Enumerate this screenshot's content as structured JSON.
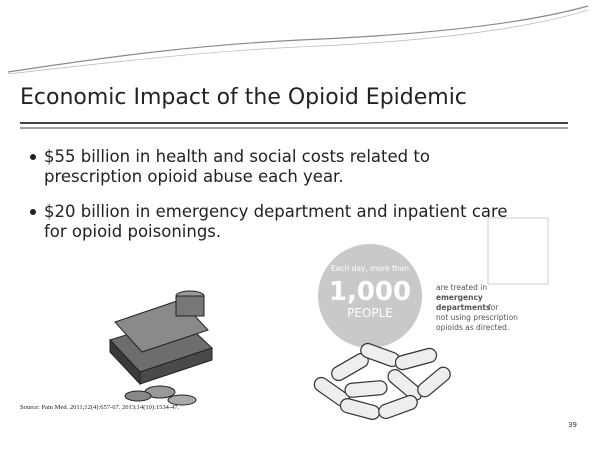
{
  "slide": {
    "title": "Economic Impact of the Opioid Epidemic",
    "bullets": [
      [
        "$55 billion in health and social costs related to",
        "prescription opioid abuse each year."
      ],
      [
        "$20 billion in emergency department and inpatient care",
        "for opioid poisonings."
      ]
    ],
    "source": "Source: Pain Med. 2011;12(4):657-67. 2013;14(10):1534-47.",
    "page_number": "39",
    "infographic": {
      "lead": "Each day, more than",
      "number": "1,000",
      "unit": "PEOPLE",
      "lines": [
        "are treated in",
        "emergency",
        "departments",
        "for",
        "not using prescription",
        "opioids as directed."
      ]
    }
  }
}
